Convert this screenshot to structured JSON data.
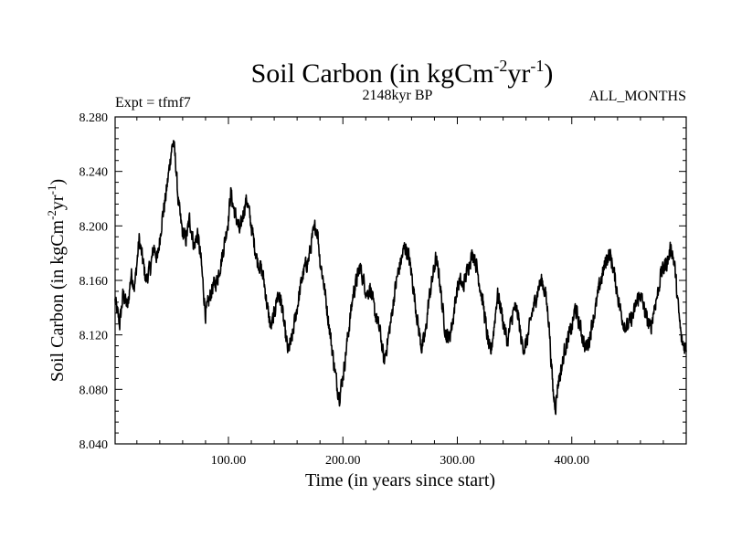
{
  "chart_data": {
    "type": "line",
    "title": {
      "prefix": "Soil Carbon (in kgCm",
      "sup1": "-2",
      "mid": "yr",
      "sup2": "-1",
      "suffix": ")"
    },
    "subtitle": "2148kyr BP",
    "left_label": "Expt = tfmf7",
    "right_label": "ALL_MONTHS",
    "xlabel": "Time (in years since start)",
    "ylabel": {
      "prefix": "Soil Carbon (in kgCm",
      "sup1": "-2",
      "mid": "yr",
      "sup2": "-1",
      "suffix": ")"
    },
    "xlim": [
      1,
      500
    ],
    "ylim": [
      8.04,
      8.28
    ],
    "x_ticks": [
      100,
      200,
      300,
      400
    ],
    "x_tick_labels": [
      "100.00",
      "200.00",
      "300.00",
      "400.00"
    ],
    "y_ticks": [
      8.04,
      8.08,
      8.12,
      8.16,
      8.2,
      8.24,
      8.28
    ],
    "y_tick_labels": [
      "8.040",
      "8.080",
      "8.120",
      "8.160",
      "8.200",
      "8.240",
      "8.280"
    ],
    "series": [
      {
        "name": "Soil Carbon",
        "color": "#000000",
        "x": [
          1,
          5,
          8,
          12,
          15,
          18,
          22,
          25,
          28,
          32,
          35,
          38,
          42,
          45,
          48,
          50,
          52,
          54,
          56,
          58,
          60,
          63,
          66,
          70,
          73,
          76,
          78,
          80,
          83,
          86,
          90,
          94,
          97,
          100,
          102,
          104,
          107,
          110,
          113,
          116,
          119,
          122,
          125,
          128,
          131,
          134,
          137,
          140,
          143,
          146,
          149,
          152,
          155,
          158,
          161,
          164,
          167,
          170,
          173,
          176,
          178,
          180,
          183,
          186,
          189,
          192,
          195,
          197,
          199,
          201,
          203,
          206,
          209,
          212,
          215,
          218,
          221,
          224,
          227,
          230,
          233,
          236,
          239,
          242,
          245,
          248,
          251,
          254,
          257,
          260,
          263,
          266,
          269,
          272,
          275,
          278,
          281,
          284,
          287,
          290,
          293,
          296,
          299,
          302,
          305,
          308,
          311,
          314,
          317,
          320,
          323,
          326,
          329,
          332,
          335,
          338,
          341,
          344,
          347,
          350,
          353,
          356,
          359,
          362,
          365,
          368,
          371,
          374,
          377,
          380,
          382,
          384,
          386,
          388,
          391,
          394,
          397,
          400,
          403,
          406,
          409,
          412,
          415,
          418,
          421,
          424,
          427,
          430,
          433,
          436,
          439,
          442,
          445,
          448,
          451,
          454,
          457,
          460,
          463,
          466,
          469,
          472,
          475,
          478,
          481,
          484,
          487,
          490,
          493,
          496,
          500
        ],
        "values": [
          8.145,
          8.128,
          8.15,
          8.14,
          8.165,
          8.155,
          8.19,
          8.175,
          8.16,
          8.17,
          8.185,
          8.175,
          8.205,
          8.22,
          8.24,
          8.255,
          8.262,
          8.245,
          8.22,
          8.205,
          8.195,
          8.19,
          8.205,
          8.185,
          8.195,
          8.175,
          8.155,
          8.135,
          8.145,
          8.155,
          8.16,
          8.175,
          8.19,
          8.205,
          8.225,
          8.215,
          8.205,
          8.195,
          8.21,
          8.22,
          8.205,
          8.19,
          8.175,
          8.17,
          8.16,
          8.14,
          8.125,
          8.135,
          8.15,
          8.145,
          8.125,
          8.108,
          8.115,
          8.13,
          8.145,
          8.16,
          8.17,
          8.175,
          8.19,
          8.2,
          8.195,
          8.175,
          8.16,
          8.14,
          8.12,
          8.1,
          8.082,
          8.075,
          8.085,
          8.095,
          8.11,
          8.13,
          8.15,
          8.16,
          8.17,
          8.16,
          8.15,
          8.155,
          8.14,
          8.13,
          8.12,
          8.1,
          8.115,
          8.13,
          8.15,
          8.165,
          8.175,
          8.185,
          8.18,
          8.165,
          8.145,
          8.125,
          8.11,
          8.12,
          8.145,
          8.16,
          8.175,
          8.165,
          8.14,
          8.12,
          8.118,
          8.13,
          8.15,
          8.16,
          8.155,
          8.165,
          8.175,
          8.18,
          8.17,
          8.155,
          8.14,
          8.12,
          8.105,
          8.125,
          8.15,
          8.14,
          8.125,
          8.115,
          8.13,
          8.14,
          8.135,
          8.115,
          8.11,
          8.12,
          8.135,
          8.145,
          8.155,
          8.16,
          8.15,
          8.13,
          8.1,
          8.075,
          8.068,
          8.085,
          8.095,
          8.11,
          8.118,
          8.125,
          8.14,
          8.13,
          8.12,
          8.11,
          8.115,
          8.13,
          8.14,
          8.155,
          8.165,
          8.175,
          8.18,
          8.17,
          8.155,
          8.14,
          8.13,
          8.125,
          8.13,
          8.135,
          8.145,
          8.15,
          8.14,
          8.13,
          8.125,
          8.14,
          8.15,
          8.165,
          8.17,
          8.175,
          8.185,
          8.17,
          8.14,
          8.115,
          8.11
        ]
      }
    ]
  }
}
